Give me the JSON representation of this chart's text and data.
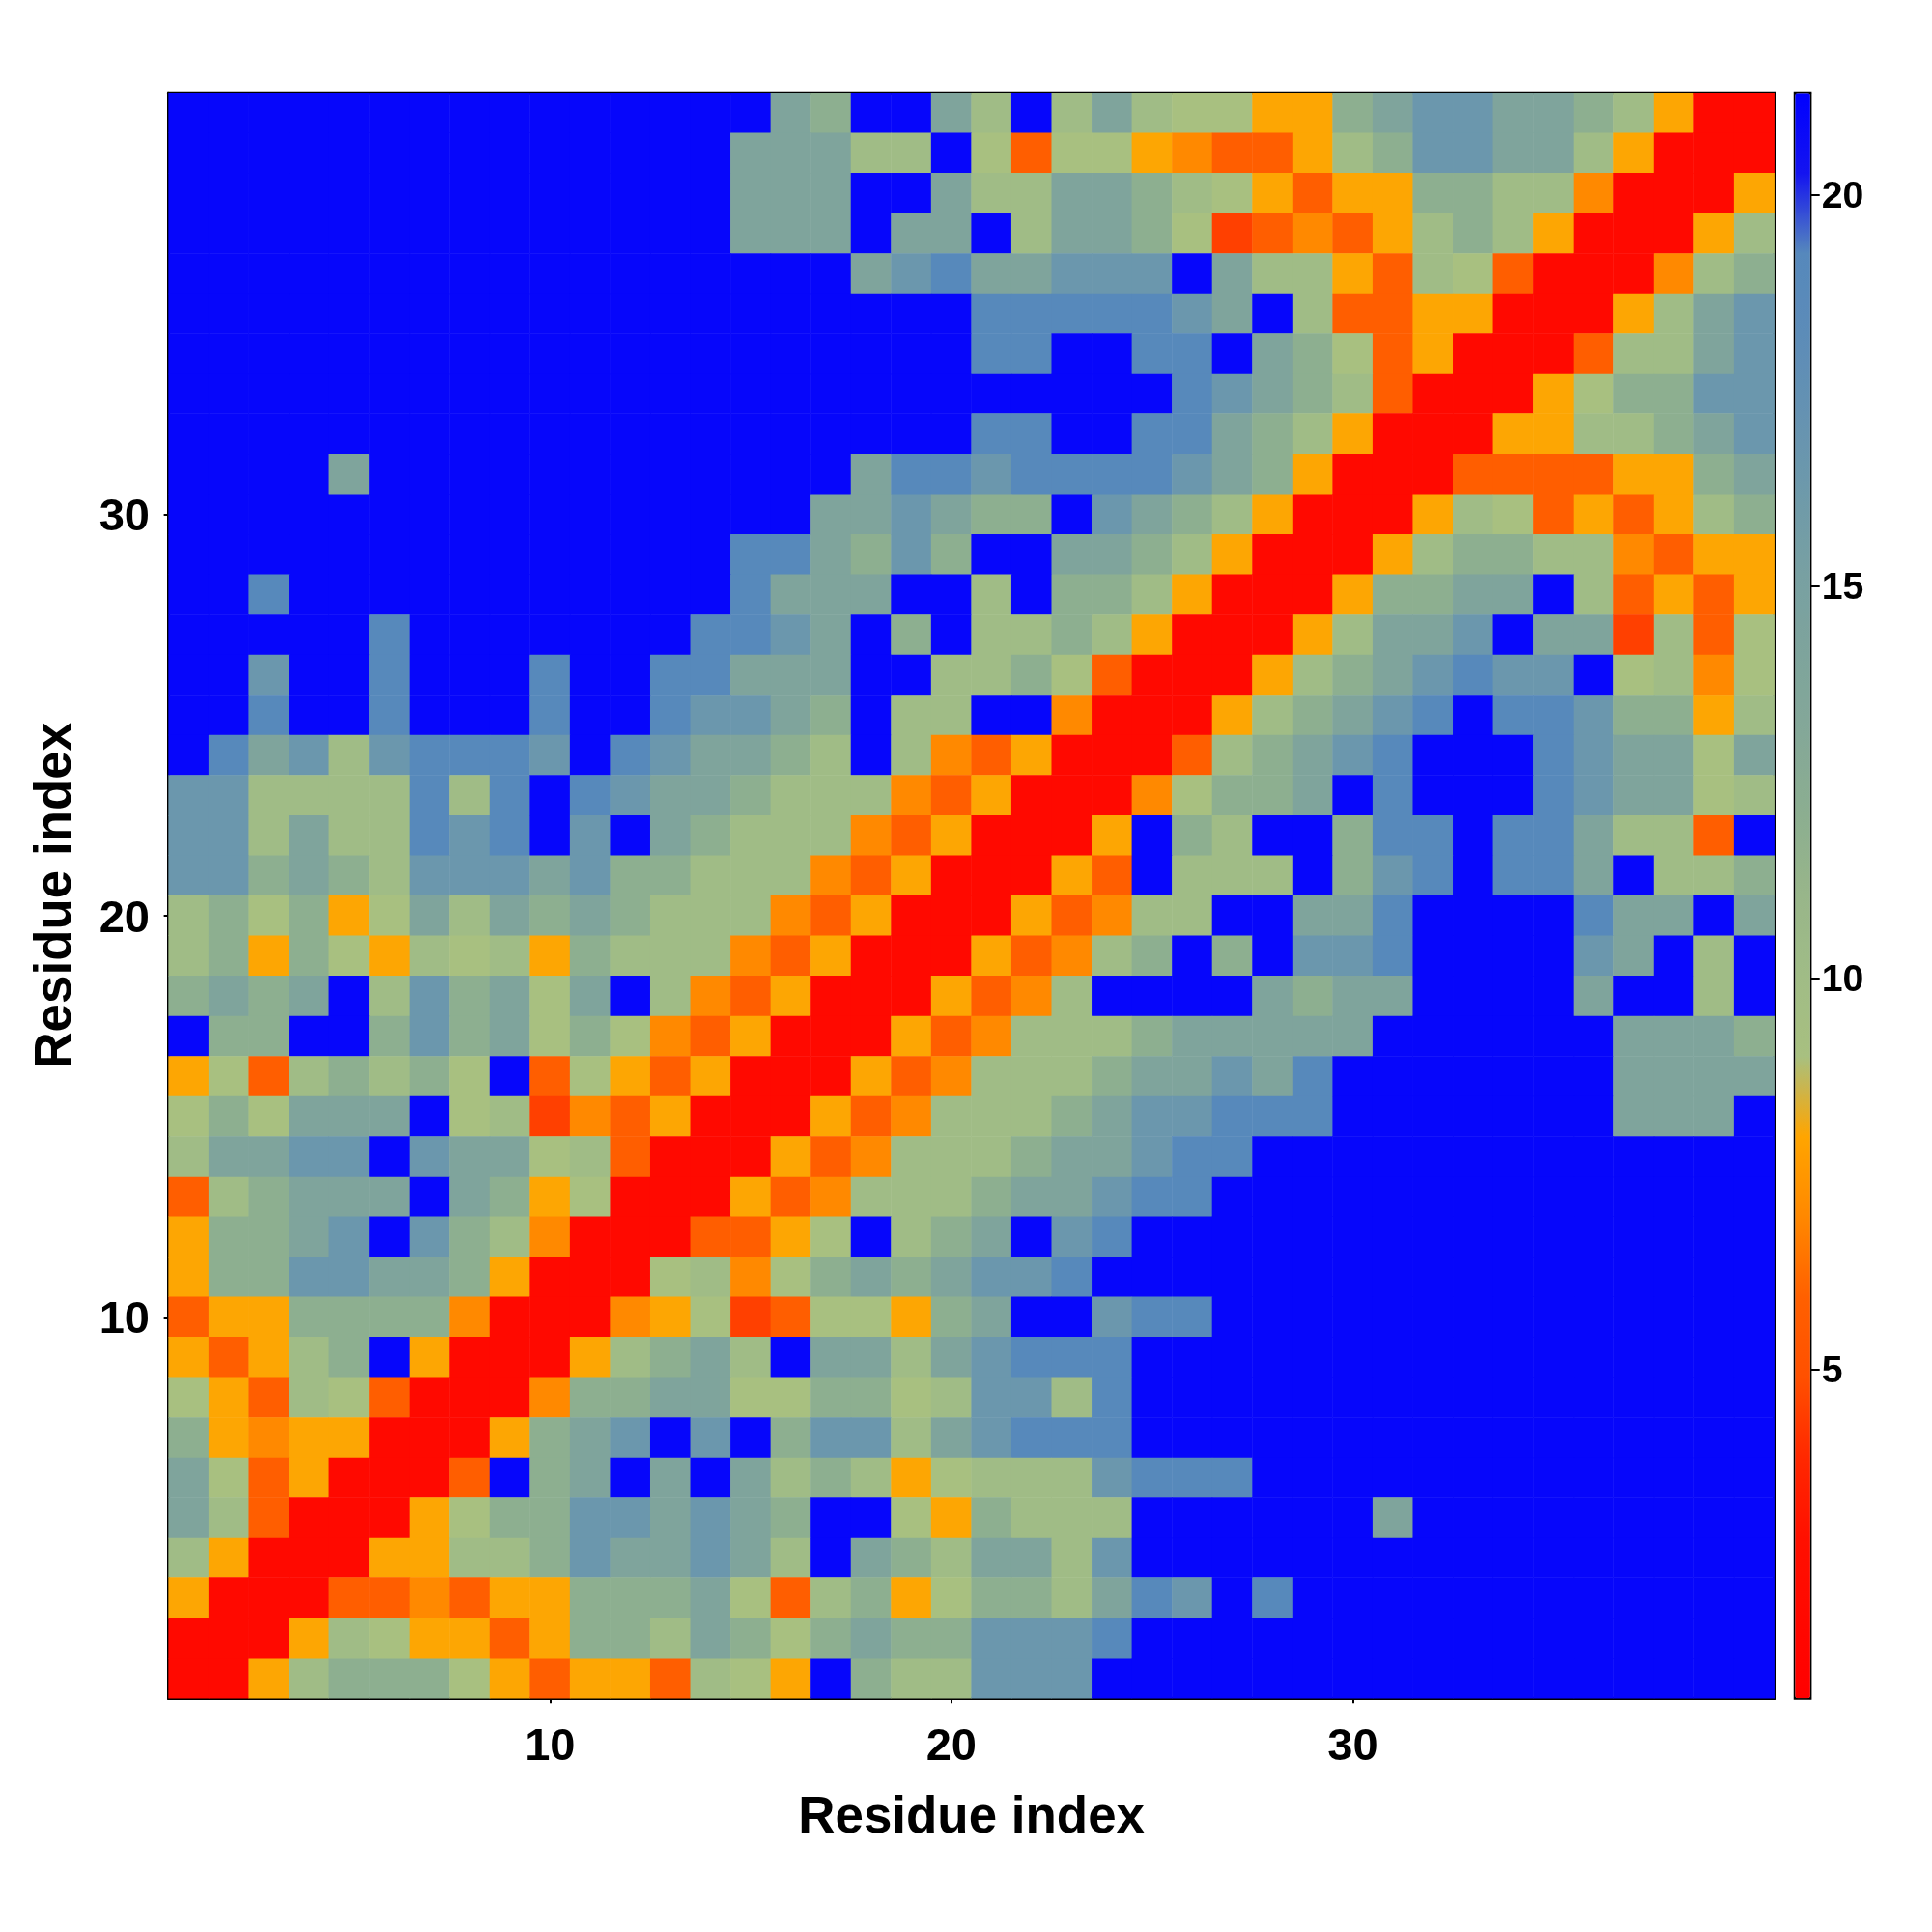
{
  "chart_data": {
    "type": "heatmap",
    "xlabel": "Residue index",
    "ylabel": "Residue index",
    "categories": [
      null,
      null,
      null,
      null,
      null,
      null,
      null,
      null,
      null,
      "10",
      null,
      null,
      null,
      null,
      null,
      null,
      null,
      null,
      null,
      "20",
      null,
      null,
      null,
      null,
      null,
      null,
      null,
      null,
      null,
      "30",
      null,
      null,
      null,
      null,
      null,
      null,
      null,
      null,
      null,
      null
    ],
    "y_categories": [
      null,
      null,
      null,
      null,
      null,
      null,
      null,
      null,
      null,
      null,
      "30",
      null,
      null,
      null,
      null,
      null,
      null,
      null,
      null,
      null,
      "20",
      null,
      null,
      null,
      null,
      null,
      null,
      null,
      null,
      null,
      "10",
      null,
      null,
      null,
      null,
      null,
      null,
      null,
      null,
      null
    ],
    "clim": [
      0.8,
      21.3
    ],
    "cticks": [
      5,
      10,
      15,
      20
    ],
    "cells": [
      [
        21,
        21,
        21,
        21,
        21,
        21,
        21,
        21,
        21,
        21,
        21,
        21,
        21,
        21,
        21,
        14,
        12,
        21,
        21,
        14,
        10,
        21,
        10,
        14,
        10,
        9,
        9,
        8,
        8,
        12,
        14,
        16.5,
        16.5,
        14,
        14,
        12,
        10,
        8,
        2,
        2
      ],
      [
        21,
        21,
        21,
        21,
        21,
        21,
        21,
        21,
        21,
        21,
        21,
        21,
        21,
        21,
        14,
        14,
        14,
        10,
        10,
        21,
        9,
        5.8,
        9,
        9,
        8,
        7,
        5.8,
        5.8,
        8,
        10,
        12,
        16.5,
        16.5,
        14,
        14,
        10,
        8,
        2,
        2,
        2
      ],
      [
        21,
        21,
        21,
        21,
        21,
        21,
        21,
        21,
        21,
        21,
        21,
        21,
        21,
        21,
        14,
        14,
        14,
        21,
        21,
        14,
        10,
        10,
        14,
        14,
        12,
        10,
        9,
        8,
        5.8,
        8,
        8,
        12,
        12,
        10,
        10,
        7,
        2,
        2,
        2,
        8
      ],
      [
        21,
        21,
        21,
        21,
        21,
        21,
        21,
        21,
        21,
        21,
        21,
        21,
        21,
        21,
        14,
        14,
        14,
        21,
        14,
        14,
        21,
        10,
        14,
        14,
        12,
        9,
        4.5,
        5.8,
        7,
        5.8,
        8,
        10,
        12,
        10,
        8,
        2,
        2,
        2,
        8,
        10
      ],
      [
        21,
        21,
        21,
        21,
        21,
        21,
        21,
        21,
        21,
        21,
        21,
        21,
        21,
        21,
        21,
        21,
        21,
        14,
        16.5,
        19,
        14,
        14,
        16.5,
        16.5,
        16.5,
        21,
        14,
        10,
        10,
        8,
        5.8,
        10,
        9,
        5.8,
        2,
        2,
        2,
        7,
        10,
        12
      ],
      [
        21,
        21,
        21,
        21,
        21,
        21,
        21,
        21,
        21,
        21,
        21,
        21,
        21,
        21,
        21,
        21,
        21,
        21,
        21,
        21,
        19,
        19,
        19,
        19,
        19,
        16.5,
        14,
        21,
        10,
        5.8,
        5.8,
        8,
        8,
        2,
        2,
        2,
        8,
        10,
        14,
        16.5
      ],
      [
        21,
        21,
        21,
        21,
        21,
        21,
        21,
        21,
        21,
        21,
        21,
        21,
        21,
        21,
        21,
        21,
        21,
        21,
        21,
        21,
        19,
        19,
        21,
        21,
        19,
        19,
        21,
        14,
        12,
        9,
        5.8,
        8,
        2,
        2,
        2,
        5.8,
        10,
        10,
        14,
        16.5
      ],
      [
        21,
        21,
        21,
        21,
        21,
        21,
        21,
        21,
        21,
        21,
        21,
        21,
        21,
        21,
        21,
        21,
        21,
        21,
        21,
        21,
        21,
        21,
        21,
        21,
        21,
        19,
        16.5,
        14,
        12,
        10,
        5.8,
        2,
        2,
        2,
        8,
        9,
        12,
        12,
        16.5,
        16.5
      ],
      [
        21,
        21,
        21,
        21,
        21,
        21,
        21,
        21,
        21,
        21,
        21,
        21,
        21,
        21,
        21,
        21,
        21,
        21,
        21,
        21,
        19,
        19,
        21,
        21,
        19,
        19,
        14,
        12,
        10,
        8,
        2,
        2,
        2,
        8,
        8,
        10,
        10,
        12,
        14,
        16.5
      ],
      [
        21,
        21,
        21,
        21,
        14,
        21,
        21,
        21,
        21,
        21,
        21,
        21,
        21,
        21,
        21,
        21,
        21,
        14,
        19,
        19,
        16.5,
        19,
        19,
        19,
        19,
        16.5,
        14,
        12,
        8,
        2,
        2,
        2,
        5.8,
        5.8,
        5.8,
        5.8,
        8,
        8,
        12,
        14
      ],
      [
        21,
        21,
        21,
        21,
        21,
        21,
        21,
        21,
        21,
        21,
        21,
        21,
        21,
        21,
        21,
        21,
        14,
        14,
        16.5,
        14,
        12,
        12,
        21,
        16.5,
        14,
        12,
        10,
        8,
        2,
        2,
        2,
        8,
        10,
        9,
        5.8,
        8,
        5.8,
        8,
        10,
        12
      ],
      [
        21,
        21,
        21,
        21,
        21,
        21,
        21,
        21,
        21,
        21,
        21,
        21,
        21,
        21,
        19,
        19,
        14,
        12,
        16.5,
        12,
        21,
        21,
        14,
        14,
        12,
        10,
        8,
        2,
        2,
        2,
        8,
        10,
        12,
        12,
        10,
        10,
        7,
        5.8,
        8,
        8
      ],
      [
        21,
        21,
        19,
        21,
        21,
        21,
        21,
        21,
        21,
        21,
        21,
        21,
        21,
        21,
        19,
        14,
        14,
        14,
        21,
        21,
        10,
        21,
        12,
        12,
        10,
        8,
        2,
        2,
        2,
        8,
        12,
        12,
        14,
        14,
        21,
        10,
        5.8,
        8,
        5.8,
        8
      ],
      [
        21,
        21,
        21,
        21,
        21,
        19,
        21,
        21,
        21,
        21,
        21,
        21,
        21,
        19,
        19,
        16.5,
        14,
        21,
        12,
        21,
        10,
        10,
        12,
        10,
        8,
        2,
        2,
        2,
        8,
        10,
        14,
        14,
        16.5,
        21,
        14,
        14,
        4.5,
        10,
        5.8,
        9
      ],
      [
        21,
        21,
        16.5,
        21,
        21,
        19,
        21,
        21,
        21,
        19,
        21,
        21,
        19,
        19,
        14,
        14,
        14,
        21,
        21,
        10,
        10,
        12,
        9,
        5.8,
        2,
        2,
        2,
        8,
        10,
        12,
        14,
        16.5,
        19,
        16.5,
        16.5,
        21,
        9,
        10,
        7,
        9
      ],
      [
        21,
        21,
        19,
        21,
        21,
        19,
        21,
        21,
        21,
        19,
        21,
        21,
        19,
        16.5,
        16.5,
        14,
        12,
        21,
        10,
        10,
        21,
        21,
        7,
        2,
        2,
        2,
        8,
        10,
        12,
        14,
        16.5,
        19,
        21,
        19,
        19,
        16.5,
        12,
        12,
        8,
        10
      ],
      [
        21,
        19,
        14,
        16.5,
        10,
        16.5,
        19,
        19,
        19,
        16.5,
        21,
        19,
        16.5,
        14,
        14,
        12,
        10,
        21,
        10,
        7,
        5.8,
        8,
        2,
        2,
        2,
        5.8,
        10,
        12,
        14,
        16.5,
        19,
        21,
        21,
        21,
        19,
        16.5,
        14,
        14,
        9,
        14
      ],
      [
        16.5,
        16.5,
        10,
        10,
        10,
        10,
        19,
        10,
        19,
        21,
        19,
        16.5,
        14,
        14,
        12,
        10,
        10,
        10,
        7,
        5.8,
        8,
        2,
        2,
        2,
        7,
        9,
        12,
        12,
        14,
        21,
        19,
        21,
        21,
        21,
        19,
        16.5,
        14,
        14,
        9,
        10
      ],
      [
        16.5,
        16.5,
        10,
        14,
        10,
        10,
        19,
        16.5,
        19,
        21,
        16.5,
        21,
        14,
        12,
        10,
        10,
        10,
        7,
        5.8,
        8,
        2,
        2,
        2,
        8,
        21,
        12,
        10,
        21,
        21,
        12,
        19,
        19,
        21,
        19,
        19,
        14,
        10,
        10,
        5.8,
        21
      ],
      [
        16.5,
        16.5,
        12,
        14,
        12,
        10,
        16.5,
        16.5,
        16.5,
        14,
        16.5,
        12,
        12,
        10,
        10,
        10,
        7,
        5.8,
        8,
        2,
        2,
        2,
        8,
        5.8,
        21,
        10,
        10,
        10,
        21,
        12,
        16.5,
        19,
        21,
        19,
        19,
        14,
        21,
        10,
        10,
        12
      ],
      [
        10,
        12,
        9,
        12,
        8,
        9,
        14,
        10,
        14,
        12,
        14,
        12,
        10,
        10,
        10,
        7,
        5.8,
        8,
        2,
        2,
        2,
        8,
        5.8,
        7,
        10,
        10,
        21,
        21,
        14,
        14,
        19,
        21,
        21,
        21,
        21,
        19,
        14,
        14,
        21,
        14
      ],
      [
        10,
        12,
        8,
        12,
        9,
        8,
        10,
        9,
        10,
        8,
        12,
        10,
        10,
        10,
        7,
        5.8,
        8,
        2,
        2,
        2,
        8,
        5.8,
        7,
        10,
        12,
        21,
        12,
        21,
        16.5,
        16.5,
        19,
        21,
        21,
        21,
        21,
        16.5,
        14,
        21,
        10,
        21
      ],
      [
        12,
        14,
        12,
        14,
        21,
        10,
        16.5,
        12,
        14,
        9,
        14,
        21,
        10,
        7,
        5.8,
        8,
        2,
        2,
        2,
        8,
        5.8,
        7,
        10,
        21,
        21,
        21,
        21,
        14,
        12,
        14,
        14,
        21,
        21,
        21,
        21,
        14,
        21,
        21,
        10,
        21
      ],
      [
        21,
        12,
        12,
        21,
        21,
        12,
        16.5,
        12,
        14,
        9,
        12,
        9,
        7,
        5.8,
        8,
        2,
        2,
        2,
        8,
        5.8,
        7,
        10,
        10,
        10,
        12,
        14,
        14,
        14,
        14,
        14,
        21,
        21,
        21,
        21,
        21,
        21,
        14,
        14,
        14,
        12
      ],
      [
        8,
        9,
        5.8,
        10,
        12,
        10,
        12,
        9,
        21,
        5.8,
        9,
        8,
        5.8,
        8,
        2,
        2,
        2,
        8,
        5.8,
        7,
        10,
        10,
        10,
        12,
        14,
        14,
        16.5,
        14,
        19,
        21,
        21,
        21,
        21,
        21,
        21,
        21,
        14,
        14,
        14,
        14
      ],
      [
        9,
        12,
        9,
        14,
        14,
        14,
        21,
        9,
        10,
        4.5,
        7,
        5.8,
        8,
        2,
        2,
        2,
        8,
        5.8,
        7,
        10,
        10,
        10,
        12,
        14,
        16.5,
        16.5,
        19,
        19,
        19,
        21,
        21,
        21,
        21,
        21,
        21,
        21,
        14,
        14,
        14,
        21
      ],
      [
        10,
        14,
        14,
        16.5,
        16.5,
        21,
        16.5,
        14,
        14,
        9,
        10,
        5.8,
        2,
        2,
        2,
        8,
        5.8,
        7,
        10,
        10,
        10,
        12,
        14,
        14,
        16.5,
        19,
        19,
        21,
        21,
        21,
        21,
        21,
        21,
        21,
        21,
        21,
        21,
        21,
        21,
        21
      ],
      [
        5.8,
        10,
        12,
        14,
        14,
        14,
        21,
        14,
        12,
        8,
        9,
        2,
        2,
        2,
        8,
        5.8,
        7,
        10,
        10,
        10,
        12,
        14,
        14,
        16.5,
        19,
        19,
        21,
        21,
        21,
        21,
        21,
        21,
        21,
        21,
        21,
        21,
        21,
        21,
        21,
        21
      ],
      [
        8,
        12,
        12,
        14,
        16.5,
        21,
        16.5,
        12,
        10,
        7,
        2,
        2,
        2,
        5.8,
        5.8,
        8,
        9,
        21,
        10,
        12,
        14,
        21,
        16.5,
        19,
        21,
        21,
        21,
        21,
        21,
        21,
        21,
        21,
        21,
        21,
        21,
        21,
        21,
        21,
        21,
        21
      ],
      [
        8,
        12,
        12,
        16.5,
        16.5,
        14,
        14,
        12,
        8,
        2,
        2,
        2,
        9,
        10,
        7,
        9,
        12,
        14,
        12,
        14,
        16.5,
        16.5,
        19,
        21,
        21,
        21,
        21,
        21,
        21,
        21,
        21,
        21,
        21,
        21,
        21,
        21,
        21,
        21,
        21,
        21
      ],
      [
        5.8,
        8,
        8,
        12,
        12,
        12,
        12,
        7,
        2,
        2,
        2,
        7,
        8,
        9,
        4.5,
        5.8,
        9,
        9,
        8,
        12,
        14,
        21,
        21,
        16.5,
        19,
        19,
        21,
        21,
        21,
        21,
        21,
        21,
        21,
        21,
        21,
        21,
        21,
        21,
        21,
        21
      ],
      [
        8,
        5.8,
        8,
        10,
        12,
        21,
        8,
        2,
        2,
        2,
        8,
        10,
        12,
        14,
        10,
        21,
        14,
        14,
        10,
        14,
        16.5,
        19,
        19,
        19,
        21,
        21,
        21,
        21,
        21,
        21,
        21,
        21,
        21,
        21,
        21,
        21,
        21,
        21,
        21,
        21
      ],
      [
        9,
        8,
        5.8,
        10,
        9,
        5.8,
        2,
        2,
        2,
        7,
        12,
        12,
        14,
        14,
        9,
        9,
        12,
        12,
        9,
        10,
        16.5,
        16.5,
        10,
        19,
        21,
        21,
        21,
        21,
        21,
        21,
        21,
        21,
        21,
        21,
        21,
        21,
        21,
        21,
        21,
        21
      ],
      [
        12,
        8,
        7,
        8,
        8,
        2,
        2,
        2,
        8,
        12,
        14,
        16.5,
        21,
        16.5,
        21,
        12,
        16.5,
        16.5,
        10,
        14,
        16.5,
        19,
        19,
        19,
        21,
        21,
        21,
        21,
        21,
        21,
        21,
        21,
        21,
        21,
        21,
        21,
        21,
        21,
        21,
        21
      ],
      [
        14,
        9,
        5.8,
        8,
        2,
        2,
        2,
        5.8,
        21,
        12,
        14,
        21,
        14,
        21,
        14,
        10,
        12,
        10,
        8,
        9,
        10,
        10,
        10,
        16.5,
        19,
        19,
        19,
        21,
        21,
        21,
        21,
        21,
        21,
        21,
        21,
        21,
        21,
        21,
        21,
        21
      ],
      [
        14,
        10,
        5.8,
        2,
        2,
        2,
        8,
        9,
        12,
        12,
        16.5,
        16.5,
        14,
        16.5,
        14,
        12,
        21,
        21,
        9,
        8,
        12,
        10,
        10,
        10,
        21,
        21,
        21,
        21,
        21,
        21,
        14,
        21,
        21,
        21,
        21,
        21,
        21,
        21,
        21,
        21
      ],
      [
        10,
        8,
        2,
        2,
        2,
        8,
        8,
        10,
        10,
        12,
        16.5,
        14,
        14,
        16.5,
        14,
        10,
        21,
        14,
        12,
        10,
        14,
        14,
        10,
        16.5,
        21,
        21,
        21,
        21,
        21,
        21,
        21,
        21,
        21,
        21,
        21,
        21,
        21,
        21,
        21,
        21
      ],
      [
        8,
        2,
        2,
        2,
        5.8,
        5.8,
        7,
        5.8,
        8,
        8,
        12,
        12,
        12,
        14,
        9,
        5.8,
        10,
        12,
        8,
        9,
        12,
        12,
        10,
        14,
        19,
        16.5,
        21,
        19,
        21,
        21,
        21,
        21,
        21,
        21,
        21,
        21,
        21,
        21,
        21,
        21
      ],
      [
        2,
        2,
        2,
        8,
        10,
        9,
        8,
        8,
        5.8,
        8,
        12,
        12,
        10,
        14,
        12,
        9,
        12,
        14,
        12,
        12,
        16.5,
        16.5,
        16.5,
        19,
        21,
        21,
        21,
        21,
        21,
        21,
        21,
        21,
        21,
        21,
        21,
        21,
        21,
        21,
        21,
        21
      ],
      [
        2,
        2,
        8,
        10,
        12,
        12,
        12,
        9,
        8,
        5.8,
        8,
        8,
        5.8,
        10,
        9,
        8,
        21,
        12,
        10,
        10,
        16.5,
        16.5,
        16.5,
        21,
        21,
        21,
        21,
        21,
        21,
        21,
        21,
        21,
        21,
        21,
        21,
        21,
        21,
        21,
        21,
        21
      ]
    ]
  }
}
